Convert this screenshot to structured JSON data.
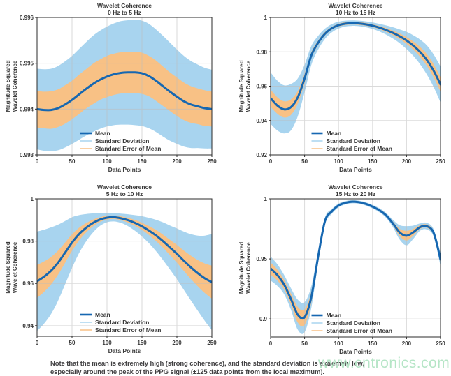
{
  "note": {
    "line1": "Note that the mean is extremely high (strong coherence), and the standard deviation is extremely low,",
    "line2": "especially around the peak of the PPG signal (±125 data points from the local maximum)."
  },
  "watermark": {
    "text": "www.cntronics.com",
    "color": "#b5e5c6"
  },
  "colors": {
    "mean": "#1667b1",
    "std_band": "#a8d4ef",
    "sem_band": "#f8c185",
    "grid": "#bcbcbc",
    "axis": "#2b2b2b",
    "text": "#3a3a3a"
  },
  "legend": {
    "mean": "Mean",
    "std": "Standard Deviation",
    "sem": "Standard Error of Mean"
  },
  "chart_data": [
    {
      "type": "line",
      "id": "chart-wavelet-coherence-0-5hz",
      "title": "Wavelet Coherence",
      "subtitle": "0 Hz to 5 Hz",
      "xlabel": "Data Points",
      "ylabel_line1": "Magnitude Squared",
      "ylabel_line2": "Wavelet Coherence",
      "legend_position": "lower center",
      "grid": true,
      "xlim": [
        0,
        250
      ],
      "ylim": [
        0.993,
        0.996
      ],
      "xticks": [
        0,
        50,
        100,
        150,
        200,
        250
      ],
      "xtick_labels": [
        "0",
        "50",
        "100",
        "150",
        "200",
        "250"
      ],
      "yticks": [
        0.993,
        0.994,
        0.995,
        0.996
      ],
      "ytick_labels": [
        "0.993",
        "0.994",
        "0.995",
        "0.996"
      ],
      "x": [
        0,
        10,
        20,
        30,
        40,
        50,
        60,
        70,
        80,
        90,
        100,
        110,
        120,
        130,
        140,
        150,
        160,
        170,
        180,
        190,
        200,
        210,
        220,
        230,
        240,
        250
      ],
      "mean": [
        0.994,
        0.99398,
        0.99398,
        0.99402,
        0.9941,
        0.9942,
        0.99432,
        0.99444,
        0.99455,
        0.99464,
        0.99471,
        0.99476,
        0.99479,
        0.9948,
        0.9948,
        0.99478,
        0.99472,
        0.99462,
        0.9945,
        0.99438,
        0.99427,
        0.99417,
        0.9941,
        0.99406,
        0.99402,
        0.994
      ],
      "std": [
        0.00088,
        0.00089,
        0.0009,
        0.00092,
        0.00094,
        0.00096,
        0.00099,
        0.00102,
        0.00105,
        0.00107,
        0.00109,
        0.00111,
        0.00113,
        0.00114,
        0.00115,
        0.00115,
        0.00114,
        0.00112,
        0.0011,
        0.00107,
        0.00103,
        0.00099,
        0.00095,
        0.00091,
        0.00088,
        0.00086
      ],
      "sem": [
        0.0004,
        0.0004,
        0.00041,
        0.00041,
        0.00042,
        0.00042,
        0.00043,
        0.00043,
        0.00044,
        0.00044,
        0.00045,
        0.00045,
        0.00045,
        0.00045,
        0.00045,
        0.00045,
        0.00044,
        0.00044,
        0.00043,
        0.00042,
        0.00042,
        0.00041,
        0.0004,
        0.00039,
        0.00039,
        0.00038
      ]
    },
    {
      "type": "line",
      "id": "chart-wavelet-coherence-10-15hz",
      "title": "Wavelet Coherence",
      "subtitle": "10 Hz to 15 Hz",
      "xlabel": "Data Points",
      "ylabel_line1": "Magnitude Squared",
      "ylabel_line2": "Wavelet Coherence",
      "legend_position": "lower center",
      "grid": true,
      "xlim": [
        0,
        250
      ],
      "ylim": [
        0.92,
        1.0
      ],
      "xticks": [
        0,
        50,
        100,
        150,
        200,
        250
      ],
      "xtick_labels": [
        "0",
        "50",
        "100",
        "150",
        "200",
        "250"
      ],
      "yticks": [
        0.92,
        0.94,
        0.96,
        0.98,
        1.0
      ],
      "ytick_labels": [
        "0.92",
        "0.94",
        "0.96",
        "0.98",
        "1"
      ],
      "x": [
        0,
        10,
        20,
        30,
        40,
        50,
        60,
        70,
        80,
        90,
        100,
        110,
        120,
        130,
        140,
        150,
        160,
        170,
        180,
        190,
        200,
        210,
        220,
        230,
        240,
        250
      ],
      "mean": [
        0.953,
        0.9487,
        0.9465,
        0.9478,
        0.9535,
        0.9645,
        0.978,
        0.9853,
        0.9905,
        0.9937,
        0.9955,
        0.9964,
        0.9967,
        0.9965,
        0.996,
        0.9952,
        0.9941,
        0.9927,
        0.991,
        0.989,
        0.9866,
        0.9836,
        0.9799,
        0.9752,
        0.9689,
        0.961
      ],
      "std": [
        0.015,
        0.0145,
        0.014,
        0.0135,
        0.011,
        0.008,
        0.0055,
        0.004,
        0.003,
        0.0024,
        0.002,
        0.0017,
        0.0016,
        0.0016,
        0.0017,
        0.0019,
        0.0022,
        0.0027,
        0.0033,
        0.004,
        0.005,
        0.006,
        0.0072,
        0.0085,
        0.0095,
        0.0105
      ],
      "sem": [
        0.005,
        0.0048,
        0.0047,
        0.0045,
        0.0037,
        0.0027,
        0.0018,
        0.0013,
        0.001,
        0.0008,
        0.0008,
        0.0008,
        0.0008,
        0.0008,
        0.0008,
        0.0008,
        0.0009,
        0.0011,
        0.0013,
        0.0016,
        0.002,
        0.0024,
        0.0029,
        0.0034,
        0.0038,
        0.0042
      ]
    },
    {
      "type": "line",
      "id": "chart-wavelet-coherence-5-10hz",
      "title": "Wavelet Coherence",
      "subtitle": "5 Hz to 10 Hz",
      "xlabel": "Data Points",
      "ylabel_line1": "Magnitude Squared",
      "ylabel_line2": "Wavelet Coherence",
      "legend_position": "lower center",
      "grid": true,
      "xlim": [
        0,
        250
      ],
      "ylim": [
        0.935,
        1.0
      ],
      "xticks": [
        0,
        50,
        100,
        150,
        200,
        250
      ],
      "xtick_labels": [
        "0",
        "50",
        "100",
        "150",
        "200",
        "250"
      ],
      "yticks": [
        0.94,
        0.96,
        0.98,
        1.0
      ],
      "ytick_labels": [
        "0.94",
        "0.96",
        "0.98",
        "1"
      ],
      "x": [
        0,
        10,
        20,
        30,
        40,
        50,
        60,
        70,
        80,
        90,
        100,
        110,
        120,
        130,
        140,
        150,
        160,
        170,
        180,
        190,
        200,
        210,
        220,
        230,
        240,
        250
      ],
      "mean": [
        0.961,
        0.9632,
        0.966,
        0.9698,
        0.9745,
        0.9793,
        0.9833,
        0.9863,
        0.9886,
        0.9902,
        0.9911,
        0.9913,
        0.9908,
        0.9899,
        0.9886,
        0.987,
        0.985,
        0.9827,
        0.98,
        0.977,
        0.974,
        0.9707,
        0.9676,
        0.9648,
        0.9624,
        0.9606
      ],
      "std": [
        0.0235,
        0.0222,
        0.0205,
        0.018,
        0.015,
        0.012,
        0.009,
        0.0065,
        0.0045,
        0.003,
        0.0022,
        0.002,
        0.0022,
        0.0028,
        0.0037,
        0.0048,
        0.006,
        0.0074,
        0.0089,
        0.0104,
        0.012,
        0.0138,
        0.0157,
        0.0178,
        0.0202,
        0.0228
      ],
      "sem": [
        0.0078,
        0.0072,
        0.0065,
        0.0057,
        0.0048,
        0.0039,
        0.003,
        0.0022,
        0.0016,
        0.0011,
        0.0009,
        0.0008,
        0.0009,
        0.0011,
        0.0014,
        0.0017,
        0.0021,
        0.0026,
        0.0031,
        0.0036,
        0.0042,
        0.0048,
        0.0055,
        0.0062,
        0.007,
        0.0078
      ]
    },
    {
      "type": "line",
      "id": "chart-wavelet-coherence-15-20hz",
      "title": "Wavelet Coherence",
      "subtitle": "15 Hz to 20 Hz",
      "xlabel": "Data Points",
      "ylabel_line1": "Magnitude Squared",
      "ylabel_line2": "Wavelet Coherence",
      "legend_position": "lower center",
      "grid": true,
      "xlim": [
        0,
        250
      ],
      "ylim": [
        0.885,
        1.0
      ],
      "xticks": [
        0,
        50,
        100,
        150,
        200,
        250
      ],
      "xtick_labels": [
        "0",
        "50",
        "100",
        "150",
        "200",
        "250"
      ],
      "yticks": [
        0.9,
        0.95,
        1.0
      ],
      "ytick_labels": [
        "0.9",
        "0.95",
        "1"
      ],
      "x": [
        0,
        10,
        20,
        30,
        40,
        50,
        60,
        70,
        80,
        90,
        100,
        110,
        120,
        130,
        140,
        150,
        160,
        170,
        180,
        190,
        200,
        210,
        220,
        230,
        240,
        250
      ],
      "mean": [
        0.942,
        0.9365,
        0.9285,
        0.9165,
        0.9035,
        0.9015,
        0.9185,
        0.952,
        0.9815,
        0.9895,
        0.9945,
        0.9967,
        0.9976,
        0.9972,
        0.9958,
        0.9935,
        0.9905,
        0.9862,
        0.9795,
        0.972,
        0.9693,
        0.9722,
        0.9765,
        0.9772,
        0.9715,
        0.9495
      ],
      "std": [
        0.01,
        0.009,
        0.008,
        0.009,
        0.0125,
        0.0125,
        0.009,
        0.005,
        0.003,
        0.002,
        0.0016,
        0.0014,
        0.0013,
        0.0013,
        0.0014,
        0.0015,
        0.0017,
        0.002,
        0.003,
        0.006,
        0.008,
        0.0055,
        0.003,
        0.0028,
        0.003,
        0.0055
      ],
      "sem": [
        0.005,
        0.0045,
        0.004,
        0.0045,
        0.0065,
        0.0065,
        0.0045,
        0.0025,
        0.0015,
        0.0011,
        0.0009,
        0.0008,
        0.0008,
        0.0008,
        0.0008,
        0.0008,
        0.0009,
        0.0011,
        0.0015,
        0.003,
        0.004,
        0.0028,
        0.0015,
        0.0014,
        0.0015,
        0.0025
      ]
    }
  ]
}
